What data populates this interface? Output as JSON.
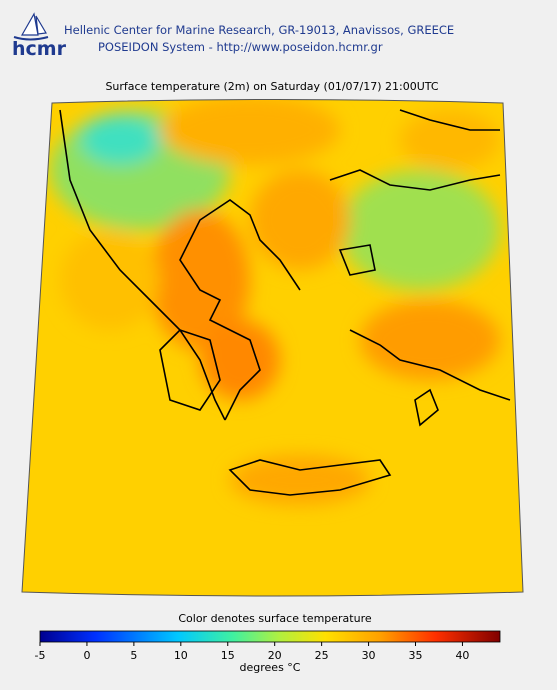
{
  "header": {
    "logo": "hcmr",
    "line1": "Hellenic Center for Marine Research, GR-19013, Anavissos, GREECE",
    "line2": "POSEIDON System - http://www.poseidon.hcmr.gr"
  },
  "title": "Surface temperature (2m) on Saturday (01/07/17) 21:00UTC",
  "colorbar": {
    "label": "Color denotes surface temperature",
    "units": "degrees °C",
    "range": [
      -5,
      44
    ],
    "ticks": [
      -5,
      0,
      5,
      10,
      15,
      20,
      25,
      30,
      35,
      40
    ]
  }
}
